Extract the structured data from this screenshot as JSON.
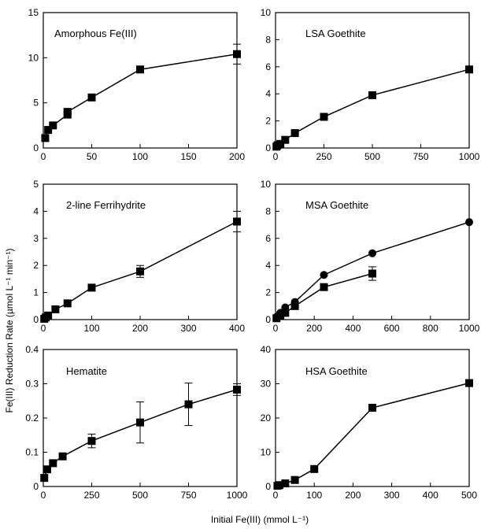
{
  "figure": {
    "xlabel": "Initial Fe(III) (mmol L⁻¹)",
    "ylabel": "Fe(III) Reduction Rate (µmol L⁻¹ min⁻¹)"
  },
  "chart_data": [
    {
      "type": "line",
      "title": "Amorphous Fe(III)",
      "xlim": [
        0,
        200
      ],
      "ylim": [
        0,
        15
      ],
      "xticks": [
        0,
        50,
        100,
        150,
        200
      ],
      "yticks": [
        0,
        5,
        10,
        15
      ],
      "series": [
        {
          "marker": "square",
          "x": [
            2,
            5,
            10,
            25,
            25,
            50,
            100,
            200
          ],
          "y": [
            1.1,
            2.0,
            2.5,
            3.7,
            4.0,
            5.6,
            8.7,
            10.4
          ],
          "err": [
            0,
            0,
            0,
            0.3,
            0.3,
            0,
            0,
            1.1
          ]
        }
      ]
    },
    {
      "type": "line",
      "title": "LSA Goethite",
      "xlim": [
        0,
        1000
      ],
      "ylim": [
        0,
        10
      ],
      "xticks": [
        0,
        250,
        500,
        750,
        1000
      ],
      "yticks": [
        0,
        2,
        4,
        6,
        8,
        10
      ],
      "series": [
        {
          "marker": "square",
          "x": [
            5,
            10,
            25,
            50,
            100,
            250,
            500,
            1000
          ],
          "y": [
            0.1,
            0.2,
            0.3,
            0.6,
            1.1,
            2.3,
            3.9,
            5.8
          ],
          "err": [
            0,
            0,
            0,
            0,
            0,
            0,
            0,
            0
          ]
        }
      ]
    },
    {
      "type": "line",
      "title": "2-line Ferrihydrite",
      "xlim": [
        0,
        400
      ],
      "ylim": [
        0,
        5
      ],
      "xticks": [
        0,
        100,
        200,
        300,
        400
      ],
      "yticks": [
        0,
        1,
        2,
        3,
        4,
        5
      ],
      "series": [
        {
          "marker": "square",
          "x": [
            2,
            5,
            10,
            25,
            50,
            100,
            200,
            400
          ],
          "y": [
            0.03,
            0.08,
            0.15,
            0.38,
            0.6,
            1.18,
            1.78,
            3.62
          ],
          "err": [
            0,
            0,
            0,
            0,
            0,
            0,
            0.22,
            0.38
          ]
        }
      ]
    },
    {
      "type": "line",
      "title": "MSA Goethite",
      "xlim": [
        0,
        1000
      ],
      "ylim": [
        0,
        10
      ],
      "xticks": [
        0,
        200,
        400,
        600,
        800,
        1000
      ],
      "yticks": [
        0,
        2,
        4,
        6,
        8,
        10
      ],
      "series": [
        {
          "marker": "circle",
          "x": [
            5,
            25,
            50,
            100,
            250,
            500,
            1000
          ],
          "y": [
            0.2,
            0.5,
            0.9,
            1.3,
            3.3,
            4.9,
            7.2
          ],
          "err": [
            0,
            0,
            0,
            0,
            0,
            0,
            0
          ]
        },
        {
          "marker": "square",
          "x": [
            5,
            25,
            50,
            100,
            250,
            500
          ],
          "y": [
            0.1,
            0.3,
            0.5,
            1.0,
            2.4,
            3.4
          ],
          "err": [
            0,
            0,
            0,
            0,
            0,
            0.5
          ]
        }
      ]
    },
    {
      "type": "line",
      "title": "Hematite",
      "xlim": [
        0,
        1000
      ],
      "ylim": [
        0,
        0.4
      ],
      "xticks": [
        0,
        250,
        500,
        750,
        1000
      ],
      "yticks": [
        0,
        0.1,
        0.2,
        0.3,
        0.4
      ],
      "ytick_labels": [
        "0",
        "0.1",
        "0.2",
        "0.3",
        "0.4"
      ],
      "series": [
        {
          "marker": "square",
          "x": [
            5,
            20,
            50,
            100,
            250,
            500,
            750,
            1000
          ],
          "y": [
            0.025,
            0.05,
            0.068,
            0.088,
            0.133,
            0.187,
            0.24,
            0.283
          ],
          "err": [
            0,
            0,
            0,
            0,
            0.02,
            0.06,
            0.062,
            0.017
          ]
        }
      ]
    },
    {
      "type": "line",
      "title": "HSA Goethite",
      "xlim": [
        0,
        500
      ],
      "ylim": [
        0,
        40
      ],
      "xticks": [
        0,
        100,
        200,
        300,
        400,
        500
      ],
      "yticks": [
        0,
        10,
        20,
        30,
        40
      ],
      "series": [
        {
          "marker": "square",
          "x": [
            5,
            10,
            25,
            50,
            100,
            250,
            500
          ],
          "y": [
            0.2,
            0.4,
            0.9,
            1.9,
            5.1,
            23.0,
            30.2
          ],
          "err": [
            0,
            0,
            0,
            0,
            0,
            0,
            0
          ]
        }
      ]
    }
  ]
}
